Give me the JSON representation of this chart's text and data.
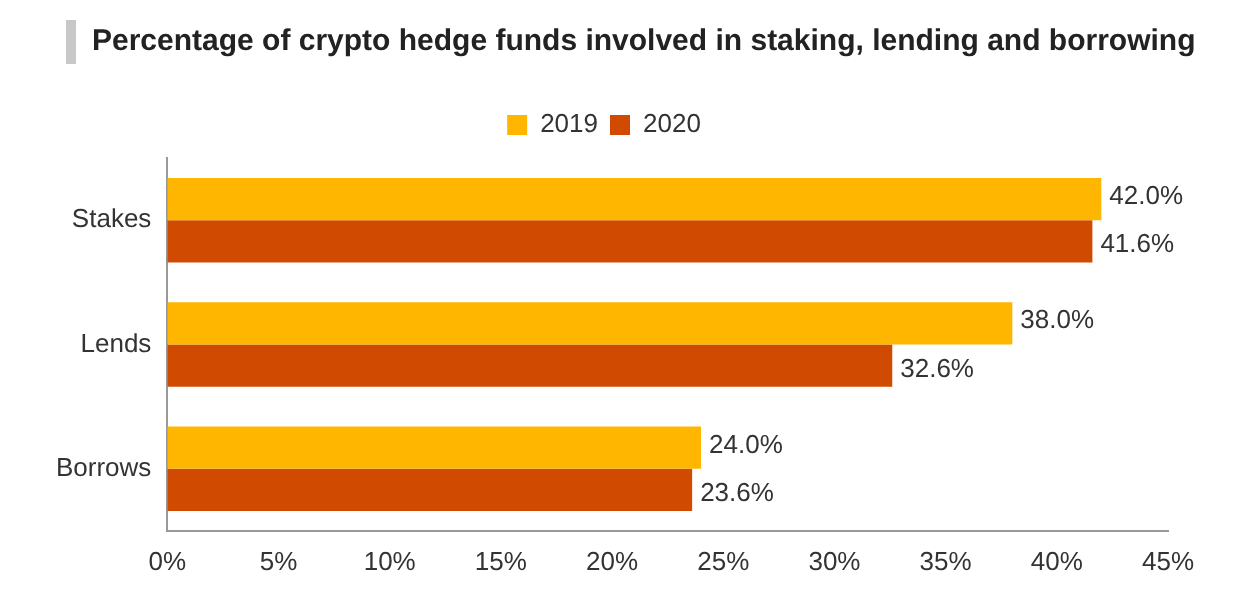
{
  "chart_data": {
    "type": "bar",
    "orientation": "horizontal",
    "title": "Percentage of crypto hedge funds involved in staking, lending and borrowing",
    "categories": [
      "Stakes",
      "Lends",
      "Borrows"
    ],
    "series": [
      {
        "name": "2019",
        "color": "#ffb600",
        "values": [
          42.0,
          38.0,
          24.0
        ],
        "value_labels": [
          "42.0%",
          "38.0%",
          "24.0%"
        ]
      },
      {
        "name": "2020",
        "color": "#d04a02",
        "values": [
          41.6,
          32.6,
          23.6
        ],
        "value_labels": [
          "41.6%",
          "32.6%",
          "23.6%"
        ]
      }
    ],
    "xlim": [
      0,
      45
    ],
    "xticks": [
      {
        "value": 0,
        "label": "0%"
      },
      {
        "value": 5,
        "label": "5%"
      },
      {
        "value": 10,
        "label": "10%"
      },
      {
        "value": 15,
        "label": "15%"
      },
      {
        "value": 20,
        "label": "20%"
      },
      {
        "value": 25,
        "label": "25%"
      },
      {
        "value": 30,
        "label": "30%"
      },
      {
        "value": 35,
        "label": "35%"
      },
      {
        "value": 40,
        "label": "40%"
      },
      {
        "value": 45,
        "label": "45%"
      }
    ],
    "grid": false,
    "legend": "top"
  }
}
